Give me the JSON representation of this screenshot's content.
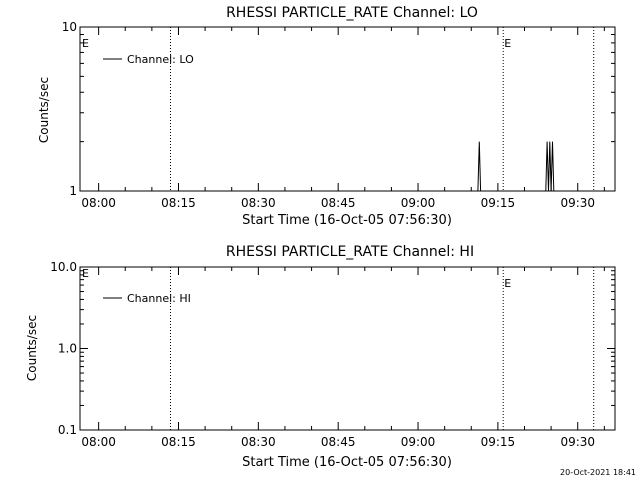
{
  "footer": {
    "timestamp": "20-Oct-2021 18:41"
  },
  "chart_data": [
    {
      "type": "line",
      "title": "RHESSI PARTICLE_RATE Channel: LO",
      "xlabel": "Start Time (16-Oct-05 07:56:30)",
      "ylabel": "Counts/sec",
      "yscale": "log",
      "xlim": [
        "07:56:30",
        "09:37:00"
      ],
      "ylim": [
        1,
        10
      ],
      "xticks": [
        "08:00",
        "08:15",
        "08:30",
        "08:45",
        "09:00",
        "09:15",
        "09:30"
      ],
      "yticks": [
        "1",
        "10"
      ],
      "legend": {
        "entry": "Channel: LO",
        "placement": "top-left"
      },
      "event_lines": [
        {
          "time": "08:13:30",
          "label": ""
        },
        {
          "time": "09:16:00",
          "label": "E"
        },
        {
          "time": "09:33:00",
          "label": ""
        }
      ],
      "edge_marker": "E",
      "series": [
        {
          "name": "Channel: LO",
          "x": [
            "09:11:15",
            "09:11:30",
            "09:11:45",
            "09:12:00",
            "09:24:00",
            "09:24:15",
            "09:24:30",
            "09:24:45",
            "09:25:00",
            "09:25:15",
            "09:25:30"
          ],
          "y": [
            1,
            2,
            1,
            1,
            1,
            2,
            1,
            2,
            1,
            2,
            1
          ]
        }
      ]
    },
    {
      "type": "line",
      "title": "RHESSI PARTICLE_RATE Channel: HI",
      "xlabel": "Start Time (16-Oct-05 07:56:30)",
      "ylabel": "Counts/sec",
      "yscale": "log",
      "xlim": [
        "07:56:30",
        "09:37:00"
      ],
      "ylim": [
        0.1,
        10
      ],
      "xticks": [
        "08:00",
        "08:15",
        "08:30",
        "08:45",
        "09:00",
        "09:15",
        "09:30"
      ],
      "yticks": [
        "0.1",
        "1.0",
        "10.0"
      ],
      "legend": {
        "entry": "Channel: HI",
        "placement": "top-left"
      },
      "event_lines": [
        {
          "time": "08:13:30",
          "label": ""
        },
        {
          "time": "09:16:00",
          "label": "E"
        },
        {
          "time": "09:33:00",
          "label": ""
        }
      ],
      "edge_marker": "E",
      "series": [
        {
          "name": "Channel: HI",
          "x": [],
          "y": []
        }
      ]
    }
  ]
}
